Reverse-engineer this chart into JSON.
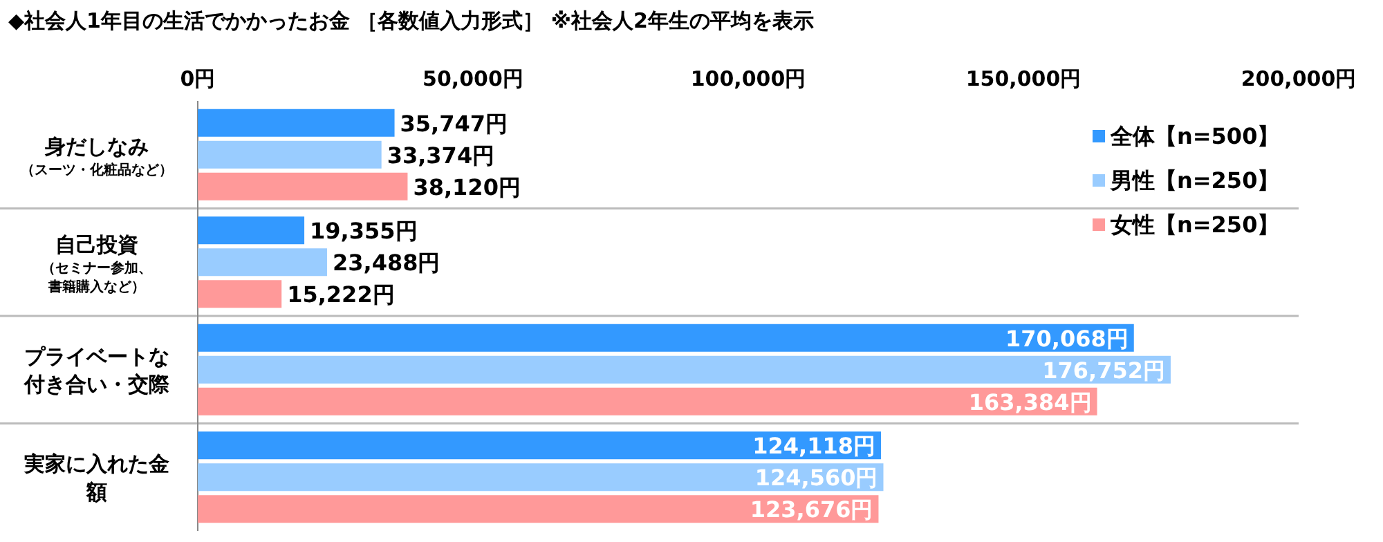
{
  "chart_data": {
    "type": "bar",
    "orientation": "horizontal",
    "title": "◆社会人1年目の生活でかかったお金 ［各数値入力形式］ ※社会人2年生の平均を表示",
    "categories": [
      "身だしなみ（スーツ・化粧品など）",
      "自己投資（セミナー参加、書籍購入など）",
      "プライベートな付き合い・交際",
      "実家に入れた金額"
    ],
    "xlim": [
      0,
      200000
    ],
    "xticks": [
      {
        "value": 0,
        "label": "0円"
      },
      {
        "value": 50000,
        "label": "50,000円"
      },
      {
        "value": 100000,
        "label": "100,000円"
      },
      {
        "value": 150000,
        "label": "150,000円"
      },
      {
        "value": 200000,
        "label": "200,000円"
      }
    ],
    "series": [
      {
        "name": "全体【n=500】",
        "color": "#3399ff",
        "values": [
          35747,
          19355,
          170068,
          124118
        ],
        "value_labels": [
          "35,747円",
          "19,355円",
          "170,068円",
          "124,118円"
        ]
      },
      {
        "name": "男性【n=250】",
        "color": "#99ccff",
        "values": [
          33374,
          23488,
          176752,
          124560
        ],
        "value_labels": [
          "33,374円",
          "23,488円",
          "176,752円",
          "124,560円"
        ]
      },
      {
        "name": "女性【n=250】",
        "color": "#ff9999",
        "values": [
          38120,
          15222,
          163384,
          123676
        ],
        "value_labels": [
          "38,120円",
          "15,222円",
          "163,384円",
          "123,676円"
        ]
      }
    ],
    "legend": "top right",
    "grid": false
  }
}
